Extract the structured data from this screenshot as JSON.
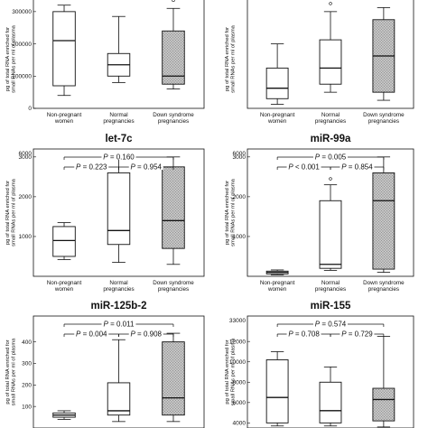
{
  "chart_data": [
    {
      "type": "box",
      "title": "",
      "ylabel": "pg of total RNA enriched for small RNAs per ml of plasma",
      "yscale": "linear",
      "ylim": [
        0,
        350000
      ],
      "yticks": [
        {
          "v": 0,
          "label": "0"
        },
        {
          "v": 100000,
          "label": "100000"
        },
        {
          "v": 200000,
          "label": "200000"
        },
        {
          "v": 300000,
          "label": "300000"
        }
      ],
      "categories": [
        "Non-pregnant women",
        "Normal pregnancies",
        "Down syndrome pregnancies"
      ],
      "boxes": [
        {
          "min": 40000,
          "q1": 70000,
          "median": 210000,
          "q3": 300000,
          "max": 320000,
          "outliers": [
            350000
          ],
          "shaded": false
        },
        {
          "min": 80000,
          "q1": 100000,
          "median": 135000,
          "q3": 170000,
          "max": 285000,
          "outliers": [],
          "shaded": false
        },
        {
          "min": 60000,
          "q1": 75000,
          "median": 100000,
          "q3": 240000,
          "max": 310000,
          "outliers": [
            335000
          ],
          "shaded": true
        }
      ],
      "pvalues": []
    },
    {
      "type": "box",
      "title": "",
      "ylabel": "pg of total RNA enriched for small RNAs per ml of plasma",
      "yscale": "linear",
      "ylim": [
        0,
        14
      ],
      "yticks": [],
      "categories": [
        "Non-pregnant women",
        "Normal pregnancies",
        "Down syndrome pregnancies"
      ],
      "boxes": [
        {
          "min": 0.5,
          "q1": 1.2,
          "median": 2.5,
          "q3": 5.0,
          "max": 8.0,
          "outliers": [],
          "shaded": false
        },
        {
          "min": 2.0,
          "q1": 3.0,
          "median": 5.0,
          "q3": 8.5,
          "max": 12.0,
          "outliers": [
            13.0
          ],
          "shaded": false
        },
        {
          "min": 1.0,
          "q1": 2.0,
          "median": 6.5,
          "q3": 11.0,
          "max": 12.5,
          "outliers": [],
          "shaded": true
        }
      ],
      "pvalues": []
    },
    {
      "type": "box",
      "title": "let-7c",
      "ylabel": "pg of total RNA enriched for small RNAs per ml of plasma",
      "yscale": "linear",
      "ylim": [
        0,
        3200
      ],
      "yticks": [
        {
          "v": 1000,
          "label": "1000"
        },
        {
          "v": 2000,
          "label": "2000"
        },
        {
          "v": 3000,
          "label": "3000"
        }
      ],
      "ylim_label_top": "6000",
      "categories": [
        "Non-pregnant women",
        "Normal pregnancies",
        "Down syndrome pregnancies"
      ],
      "boxes": [
        {
          "min": 420,
          "q1": 500,
          "median": 900,
          "q3": 1250,
          "max": 1350,
          "outliers": [],
          "shaded": false
        },
        {
          "min": 350,
          "q1": 800,
          "median": 1150,
          "q3": 2600,
          "max": 3000,
          "outliers": [],
          "shaded": false
        },
        {
          "min": 300,
          "q1": 700,
          "median": 1400,
          "q3": 2750,
          "max": 3000,
          "outliers": [],
          "shaded": true
        }
      ],
      "pvalues": [
        {
          "text": "P = 0.160",
          "from": 0,
          "to": 2,
          "level": 2
        },
        {
          "text": "P = 0.223",
          "from": 0,
          "to": 1,
          "level": 1
        },
        {
          "text": "P = 0.954",
          "from": 1,
          "to": 2,
          "level": 1
        }
      ]
    },
    {
      "type": "box",
      "title": "miR-99a",
      "ylabel": "pg of total RNA enriched for small RNAs per ml of plasma",
      "yscale": "linear",
      "ylim": [
        0,
        3200
      ],
      "yticks": [
        {
          "v": 1000,
          "label": "1000"
        },
        {
          "v": 2000,
          "label": "2000"
        },
        {
          "v": 3000,
          "label": "3000"
        }
      ],
      "ylim_label_top": "6000",
      "categories": [
        "Non-pregnant women",
        "Normal pregnancies",
        "Down syndrome pregnancies"
      ],
      "boxes": [
        {
          "min": 40,
          "q1": 60,
          "median": 100,
          "q3": 130,
          "max": 160,
          "outliers": [],
          "shaded": false
        },
        {
          "min": 150,
          "q1": 200,
          "median": 300,
          "q3": 1900,
          "max": 2300,
          "outliers": [
            2450
          ],
          "shaded": false
        },
        {
          "min": 100,
          "q1": 180,
          "median": 1900,
          "q3": 2600,
          "max": 3000,
          "outliers": [],
          "shaded": true
        }
      ],
      "pvalues": [
        {
          "text": "P = 0.005",
          "from": 0,
          "to": 2,
          "level": 2
        },
        {
          "text": "P < 0.001",
          "from": 0,
          "to": 1,
          "level": 1
        },
        {
          "text": "P = 0.854",
          "from": 1,
          "to": 2,
          "level": 1
        }
      ]
    },
    {
      "type": "box",
      "title": "miR-125b-2",
      "ylabel": "pg of total RNA enriched for small RNAs per ml of plasma",
      "yscale": "linear",
      "ylim": [
        0,
        520
      ],
      "yticks": [
        {
          "v": 100,
          "label": "100"
        },
        {
          "v": 200,
          "label": "200"
        },
        {
          "v": 300,
          "label": "300"
        },
        {
          "v": 400,
          "label": "400"
        }
      ],
      "categories": [
        "Non-pregnant women",
        "Normal pregnancies",
        "Down syndrome pregnancies"
      ],
      "boxes": [
        {
          "min": 40,
          "q1": 50,
          "median": 60,
          "q3": 70,
          "max": 80,
          "outliers": [],
          "shaded": false
        },
        {
          "min": 30,
          "q1": 60,
          "median": 80,
          "q3": 210,
          "max": 410,
          "outliers": [],
          "shaded": false
        },
        {
          "min": 30,
          "q1": 60,
          "median": 140,
          "q3": 400,
          "max": 440,
          "outliers": [],
          "shaded": true
        }
      ],
      "pvalues": [
        {
          "text": "P = 0.011",
          "from": 0,
          "to": 2,
          "level": 2
        },
        {
          "text": "P = 0.004",
          "from": 0,
          "to": 1,
          "level": 1
        },
        {
          "text": "P = 0.908",
          "from": 1,
          "to": 2,
          "level": 1
        }
      ]
    },
    {
      "type": "box",
      "title": "miR-155",
      "ylabel": "pg of total RNA enriched for small RNAs per ml of plasma",
      "yscale": "linear",
      "ylim": [
        3500,
        14500
      ],
      "yticks": [
        {
          "v": 4000,
          "label": "4000"
        },
        {
          "v": 6000,
          "label": "6000"
        },
        {
          "v": 8000,
          "label": "8000"
        },
        {
          "v": 10000,
          "label": "10000"
        },
        {
          "v": 12000,
          "label": "12000"
        }
      ],
      "ylim_label_top": "33000",
      "categories": [
        "Non-pregnant women",
        "Normal pregnancies",
        "Down syndrome pregnancies"
      ],
      "boxes": [
        {
          "min": 3700,
          "q1": 4000,
          "median": 6500,
          "q3": 10200,
          "max": 11000,
          "outliers": [],
          "shaded": false
        },
        {
          "min": 3700,
          "q1": 4000,
          "median": 5200,
          "q3": 8000,
          "max": 9500,
          "outliers": [],
          "shaded": false
        },
        {
          "min": 3600,
          "q1": 4200,
          "median": 6300,
          "q3": 7400,
          "max": 12500,
          "outliers": [],
          "shaded": true
        }
      ],
      "pvalues": [
        {
          "text": "P = 0.574",
          "from": 0,
          "to": 2,
          "level": 2
        },
        {
          "text": "P = 0.708",
          "from": 0,
          "to": 1,
          "level": 1
        },
        {
          "text": "P = 0.729",
          "from": 1,
          "to": 2,
          "level": 1
        }
      ]
    }
  ],
  "colors": {
    "line": "#111111",
    "box_fill": "#ffffff",
    "shade": "#9a9a9a"
  }
}
